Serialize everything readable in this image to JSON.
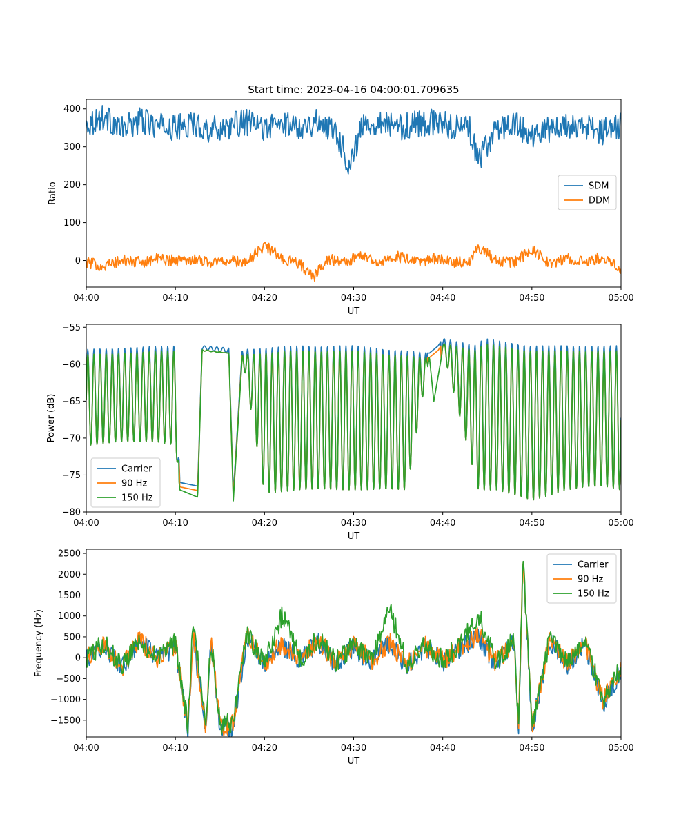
{
  "chart_data": [
    {
      "type": "line",
      "title": "Start time: 2023-04-16 04:00:01.709635",
      "xlabel": "UT",
      "ylabel": "Ratio",
      "xlim": [
        0,
        60
      ],
      "ylim": [
        -70,
        425
      ],
      "xticks": [
        0,
        10,
        20,
        30,
        40,
        50,
        60
      ],
      "xtick_labels": [
        "04:00",
        "04:10",
        "04:20",
        "04:30",
        "04:40",
        "04:50",
        "05:00"
      ],
      "yticks": [
        0,
        100,
        200,
        300,
        400
      ],
      "ytick_labels": [
        "0",
        "100",
        "200",
        "300",
        "400"
      ],
      "grid": false,
      "legend": "center-right",
      "series": [
        {
          "name": "SDM",
          "color": "#1f77b4",
          "x": [
            0,
            2,
            4,
            6,
            8,
            10,
            12,
            14,
            16,
            18,
            20,
            22,
            24,
            26,
            28,
            29.5,
            31,
            33,
            35,
            37,
            39,
            41,
            43,
            44,
            46,
            48,
            50,
            52,
            54,
            56,
            58,
            60
          ],
          "y": [
            360,
            380,
            345,
            370,
            355,
            350,
            360,
            345,
            355,
            365,
            350,
            360,
            355,
            365,
            345,
            250,
            355,
            370,
            350,
            360,
            365,
            355,
            350,
            258,
            350,
            360,
            330,
            345,
            355,
            350,
            340,
            358
          ]
        },
        {
          "name": "DDM",
          "color": "#ff7f0e",
          "x": [
            0,
            2,
            4,
            6,
            8,
            10,
            12,
            14,
            16,
            18,
            20,
            22,
            24,
            25.5,
            27,
            29,
            31,
            33,
            35,
            37,
            39,
            41,
            43,
            44,
            46,
            48,
            50,
            52,
            54,
            56,
            58,
            60
          ],
          "y": [
            -5,
            -15,
            0,
            -5,
            5,
            0,
            5,
            -5,
            0,
            -5,
            40,
            5,
            -10,
            -45,
            5,
            -5,
            15,
            -5,
            10,
            -5,
            5,
            -5,
            0,
            35,
            0,
            -5,
            30,
            -10,
            5,
            -5,
            10,
            -20
          ]
        }
      ]
    },
    {
      "type": "line",
      "title": "",
      "xlabel": "UT",
      "ylabel": "Power (dB)",
      "xlim": [
        0,
        60
      ],
      "ylim": [
        -80,
        -54.6
      ],
      "xticks": [
        0,
        10,
        20,
        30,
        40,
        50,
        60
      ],
      "xtick_labels": [
        "04:00",
        "04:10",
        "04:20",
        "04:30",
        "04:40",
        "04:50",
        "05:00"
      ],
      "yticks": [
        -80,
        -75,
        -70,
        -65,
        -60,
        -55
      ],
      "ytick_labels": [
        "−80",
        "−75",
        "−70",
        "−65",
        "−60",
        "−55"
      ],
      "grid": false,
      "legend": "lower-left",
      "series": [
        {
          "name": "Carrier",
          "color": "#1f77b4",
          "x": [
            0,
            10,
            10.5,
            12.5,
            13,
            16,
            16.5,
            17.5,
            24,
            30,
            38.5,
            39.5,
            40,
            44,
            44.5,
            50,
            60
          ],
          "y": [
            -58,
            -57.5,
            -76,
            -76.5,
            -57.5,
            -57.8,
            -77.5,
            -58,
            -57.5,
            -57.5,
            -58.5,
            -57.5,
            -56.5,
            -57.5,
            -56.5,
            -57.5,
            -57.5
          ]
        },
        {
          "name": "90 Hz",
          "color": "#ff7f0e",
          "x": [
            0,
            10,
            10.5,
            12.5,
            13,
            16,
            16.5,
            17.5,
            24,
            30,
            38.5,
            39.5,
            40,
            44,
            44.5,
            50,
            60
          ],
          "y": [
            -58.5,
            -58,
            -77,
            -77.5,
            -58,
            -58.5,
            -78.5,
            -58.5,
            -58.5,
            -58.5,
            -59,
            -58.5,
            -57.5,
            -72.5,
            -57.5,
            -58.5,
            -58.5
          ]
        },
        {
          "name": "150 Hz",
          "color": "#2ca02c",
          "x": [
            0,
            4,
            8,
            10,
            10.5,
            12.5,
            13,
            16,
            16.5,
            17.5,
            20,
            24,
            28,
            32,
            36,
            38.5,
            39,
            40,
            44,
            46,
            50,
            54,
            58,
            60
          ],
          "y": [
            -71,
            -70.5,
            -70.5,
            -71,
            -77,
            -78,
            -58,
            -58.5,
            -78.5,
            -59,
            -77.5,
            -77,
            -77,
            -77,
            -77,
            -59,
            -65,
            -58,
            -77,
            -77,
            -78.5,
            -77,
            -76.5,
            -77
          ]
        }
      ]
    },
    {
      "type": "line",
      "title": "",
      "xlabel": "UT",
      "ylabel": "Frequency (Hz)",
      "xlim": [
        0,
        60
      ],
      "ylim": [
        -1900,
        2600
      ],
      "xticks": [
        0,
        10,
        20,
        30,
        40,
        50,
        60
      ],
      "xtick_labels": [
        "04:00",
        "04:10",
        "04:20",
        "04:30",
        "04:40",
        "04:50",
        "05:00"
      ],
      "yticks": [
        -1500,
        -1000,
        -500,
        0,
        500,
        1000,
        1500,
        2000,
        2500
      ],
      "ytick_labels": [
        "−1500",
        "−1000",
        "−500",
        "0",
        "500",
        "1000",
        "1500",
        "2000",
        "2500"
      ],
      "grid": false,
      "legend": "upper-right",
      "series": [
        {
          "name": "Carrier",
          "color": "#1f77b4",
          "x": [
            0,
            2,
            4,
            6,
            8,
            10,
            11.4,
            12,
            13.4,
            14,
            15,
            16.5,
            18,
            20,
            22,
            24,
            26,
            28,
            30,
            32,
            34,
            36,
            38,
            40,
            42,
            44,
            46,
            48,
            48.5,
            49,
            50,
            52,
            54,
            56,
            58,
            60
          ],
          "y": [
            -50,
            300,
            -250,
            400,
            -50,
            300,
            -1700,
            500,
            -1700,
            400,
            -1700,
            -1650,
            500,
            -150,
            300,
            -100,
            400,
            -150,
            250,
            -100,
            350,
            -200,
            250,
            -100,
            250,
            500,
            -150,
            400,
            -1700,
            2380,
            -1700,
            400,
            -150,
            300,
            -1100,
            -300
          ]
        },
        {
          "name": "90 Hz",
          "color": "#ff7f0e",
          "x": [
            0,
            2,
            4,
            6,
            8,
            10,
            11.4,
            12,
            13.4,
            14,
            15,
            16.5,
            18,
            20,
            22,
            24,
            26,
            28,
            30,
            32,
            34,
            36,
            38,
            40,
            42,
            44,
            46,
            48,
            48.5,
            49,
            50,
            52,
            54,
            56,
            58,
            60
          ],
          "y": [
            -20,
            330,
            -220,
            430,
            -20,
            330,
            -1650,
            530,
            -1650,
            430,
            -1650,
            -1600,
            530,
            -120,
            330,
            -70,
            430,
            -120,
            280,
            -70,
            380,
            -170,
            280,
            -70,
            280,
            530,
            -120,
            430,
            -1650,
            2380,
            -1650,
            430,
            -120,
            330,
            -1050,
            -270
          ]
        },
        {
          "name": "150 Hz",
          "color": "#2ca02c",
          "x": [
            0,
            2,
            4,
            6,
            8,
            10,
            11.4,
            12,
            13.4,
            14,
            15,
            16.5,
            18,
            20,
            22,
            24,
            26,
            28,
            30,
            32,
            34,
            36,
            38,
            40,
            42,
            44,
            46,
            48,
            48.5,
            49,
            50,
            52,
            54,
            56,
            58,
            60
          ],
          "y": [
            0,
            350,
            -200,
            450,
            0,
            350,
            -1600,
            950,
            -1600,
            450,
            -1600,
            -1550,
            550,
            -100,
            1050,
            -50,
            450,
            -100,
            300,
            -50,
            1200,
            -150,
            300,
            -50,
            300,
            1050,
            -100,
            450,
            -1600,
            2380,
            -1600,
            450,
            -100,
            350,
            -1000,
            -250
          ]
        }
      ]
    }
  ]
}
